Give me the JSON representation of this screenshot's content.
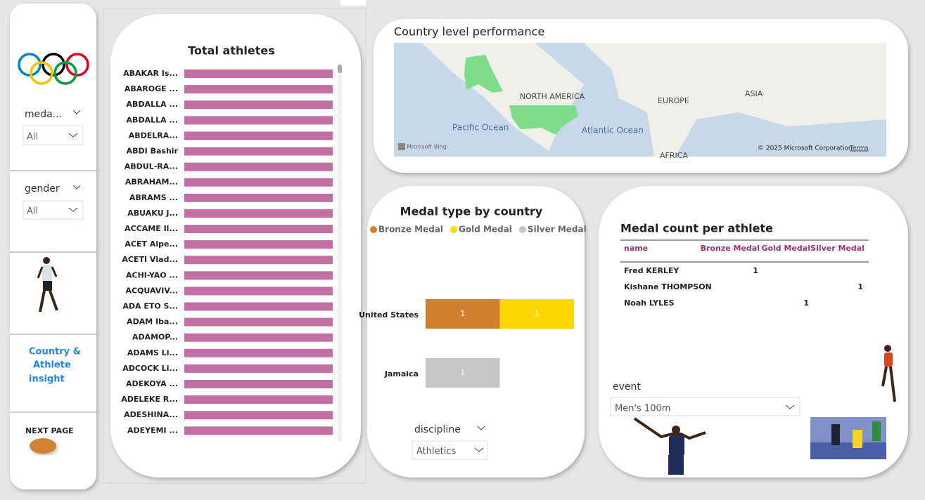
{
  "sidebar": {
    "medal_slicer": {
      "label": "meda...",
      "value": "All"
    },
    "gender_slicer": {
      "label": "gender",
      "value": "All"
    },
    "nav_lines": [
      "Country &",
      "Athlete",
      "insight"
    ],
    "next_page": "NEXT PAGE"
  },
  "total_athletes": {
    "type": "bar",
    "title": "Total athletes",
    "color": "#c36fa6",
    "categories": [
      "ABAKAR Is...",
      "ABAROGE ...",
      "ABDALLA ...",
      "ABDALLA ...",
      "ABDELRA...",
      "ABDI Bashir",
      "ABDUL-RA...",
      "ABRAHAM...",
      "ABRAMS ...",
      "ABUAKU J...",
      "ACCAME Il...",
      "ACET Alpe...",
      "ACETI Vlad...",
      "ACHI-YAO ...",
      "ACQUAVIV...",
      "ADA ETO S...",
      "ADAM Iba...",
      "ADAMOP...",
      "ADAMS Li...",
      "ADCOCK Li...",
      "ADEKOYA ...",
      "ADELEKE R...",
      "ADESHINA...",
      "ADEYEMI ..."
    ],
    "values": [
      1,
      1,
      1,
      1,
      1,
      1,
      1,
      1,
      1,
      1,
      1,
      1,
      1,
      1,
      1,
      1,
      1,
      1,
      1,
      1,
      1,
      1,
      1,
      1
    ]
  },
  "map": {
    "title": "Country level performance",
    "labels": [
      "NORTH AMERICA",
      "EUROPE",
      "ASIA",
      "Pacific Ocean",
      "Atlantic Ocean",
      "AFRICA"
    ],
    "provider": "Microsoft Bing",
    "copyright": "© 2025 Microsoft Corporation",
    "terms": "Terms"
  },
  "medal_chart": {
    "type": "stacked-bar",
    "title": "Medal type by country",
    "categories": [
      "United States",
      "Jamaica"
    ],
    "series": [
      {
        "name": "Bronze Medal",
        "color": "#d08130",
        "values": [
          1,
          null
        ]
      },
      {
        "name": "Gold Medal",
        "color": "#fdd800",
        "values": [
          1,
          null
        ]
      },
      {
        "name": "Silver Medal",
        "color": "#c6c6c6",
        "values": [
          null,
          1
        ]
      }
    ]
  },
  "discipline_slicer": {
    "label": "discipline",
    "value": "Athletics"
  },
  "medal_table": {
    "title": "Medal count per athlete",
    "columns": [
      "name",
      "Bronze Medal",
      "Gold Medal",
      "Silver Medal"
    ],
    "rows": [
      [
        "Fred KERLEY",
        1,
        null,
        null
      ],
      [
        "Kishane THOMPSON",
        null,
        null,
        1
      ],
      [
        "Noah LYLES",
        null,
        1,
        null
      ]
    ]
  },
  "event_slicer": {
    "label": "event",
    "value": "Men's 100m"
  }
}
